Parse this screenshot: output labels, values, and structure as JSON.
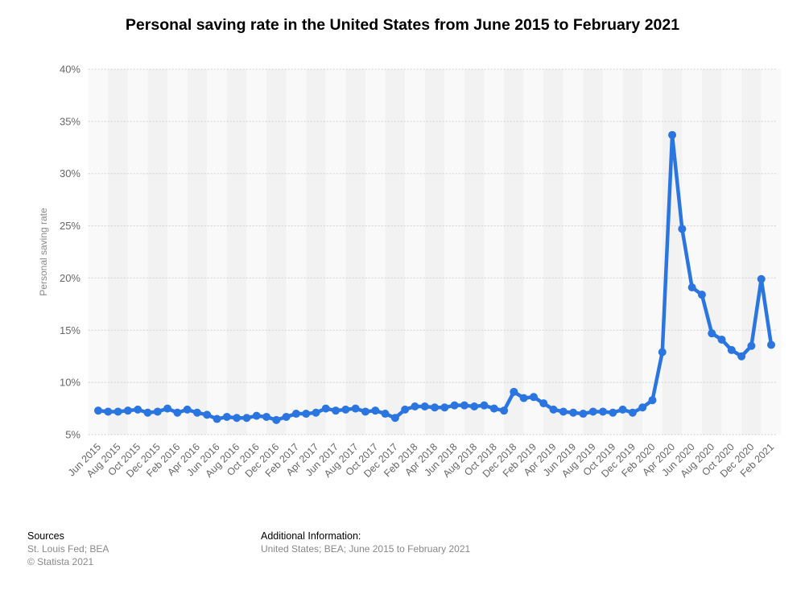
{
  "chart_data": {
    "type": "line",
    "title": "Personal saving rate in the United States from June 2015 to February 2021",
    "xlabel": "",
    "ylabel": "Personal saving rate",
    "ylim": [
      5,
      40
    ],
    "y_ticks": [
      "5%",
      "10%",
      "15%",
      "20%",
      "25%",
      "30%",
      "35%",
      "40%"
    ],
    "x_tick_labels": [
      "Jun 2015",
      "Aug 2015",
      "Oct 2015",
      "Dec 2015",
      "Feb 2016",
      "Apr 2016",
      "Jun 2016",
      "Aug 2016",
      "Oct 2016",
      "Dec 2016",
      "Feb 2017",
      "Apr 2017",
      "Jun 2017",
      "Aug 2017",
      "Oct 2017",
      "Dec 2017",
      "Feb 2018",
      "Apr 2018",
      "Jun 2018",
      "Aug 2018",
      "Oct 2018",
      "Dec 2018",
      "Feb 2019",
      "Apr 2019",
      "Jun 2019",
      "Aug 2019",
      "Oct 2019",
      "Dec 2019",
      "Feb 2020",
      "Apr 2020",
      "Jun 2020",
      "Aug 2020",
      "Oct 2020",
      "Dec 2020",
      "Feb 2021"
    ],
    "grid": true,
    "line_color": "#2a75e0",
    "x": [
      "Jun 2015",
      "Jul 2015",
      "Aug 2015",
      "Sep 2015",
      "Oct 2015",
      "Nov 2015",
      "Dec 2015",
      "Jan 2016",
      "Feb 2016",
      "Mar 2016",
      "Apr 2016",
      "May 2016",
      "Jun 2016",
      "Jul 2016",
      "Aug 2016",
      "Sep 2016",
      "Oct 2016",
      "Nov 2016",
      "Dec 2016",
      "Jan 2017",
      "Feb 2017",
      "Mar 2017",
      "Apr 2017",
      "May 2017",
      "Jun 2017",
      "Jul 2017",
      "Aug 2017",
      "Sep 2017",
      "Oct 2017",
      "Nov 2017",
      "Dec 2017",
      "Jan 2018",
      "Feb 2018",
      "Mar 2018",
      "Apr 2018",
      "May 2018",
      "Jun 2018",
      "Jul 2018",
      "Aug 2018",
      "Sep 2018",
      "Oct 2018",
      "Nov 2018",
      "Dec 2018",
      "Jan 2019",
      "Feb 2019",
      "Mar 2019",
      "Apr 2019",
      "May 2019",
      "Jun 2019",
      "Jul 2019",
      "Aug 2019",
      "Sep 2019",
      "Oct 2019",
      "Nov 2019",
      "Dec 2019",
      "Jan 2020",
      "Feb 2020",
      "Mar 2020",
      "Apr 2020",
      "May 2020",
      "Jun 2020",
      "Jul 2020",
      "Aug 2020",
      "Sep 2020",
      "Oct 2020",
      "Nov 2020",
      "Dec 2020",
      "Jan 2021",
      "Feb 2021"
    ],
    "values": [
      7.3,
      7.2,
      7.2,
      7.3,
      7.4,
      7.1,
      7.2,
      7.5,
      7.1,
      7.4,
      7.1,
      6.9,
      6.5,
      6.7,
      6.6,
      6.6,
      6.8,
      6.7,
      6.4,
      6.7,
      7.0,
      7.0,
      7.1,
      7.5,
      7.3,
      7.4,
      7.5,
      7.2,
      7.3,
      7.0,
      6.6,
      7.4,
      7.7,
      7.7,
      7.6,
      7.6,
      7.8,
      7.8,
      7.7,
      7.8,
      7.5,
      7.3,
      9.1,
      8.5,
      8.6,
      8.0,
      7.4,
      7.2,
      7.1,
      7.0,
      7.2,
      7.2,
      7.1,
      7.4,
      7.1,
      7.6,
      8.3,
      12.9,
      33.7,
      24.7,
      19.1,
      18.4,
      14.7,
      14.1,
      13.1,
      12.5,
      13.5,
      19.9,
      13.6
    ]
  },
  "footer": {
    "sources_label": "Sources",
    "sources_line1": "St. Louis Fed; BEA",
    "sources_line2": "© Statista 2021",
    "info_label": "Additional Information:",
    "info_line1": "United States; BEA; June 2015 to February 2021"
  }
}
